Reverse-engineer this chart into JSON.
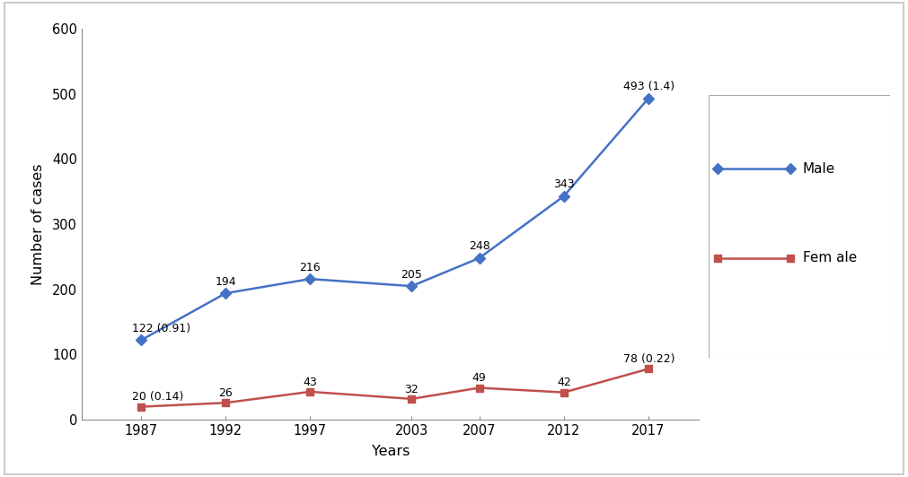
{
  "years": [
    1987,
    1992,
    1997,
    2003,
    2007,
    2012,
    2017
  ],
  "male_values": [
    122,
    194,
    216,
    205,
    248,
    343,
    493
  ],
  "female_values": [
    20,
    26,
    43,
    32,
    49,
    42,
    78
  ],
  "male_labels": [
    "122 (0.91)",
    "194",
    "216",
    "205",
    "248",
    "343",
    "493 (1.4)"
  ],
  "female_labels": [
    "20 (0.14)",
    "26",
    "43",
    "32",
    "49",
    "42",
    "78 (0.22)"
  ],
  "male_color": "#4472C4",
  "female_color": "#C0504D",
  "male_label": "Male",
  "female_label": "Fem ale",
  "xlabel": "Years",
  "ylabel": "Number of cases",
  "ylim": [
    0,
    600
  ],
  "yticks": [
    0,
    100,
    200,
    300,
    400,
    500,
    600
  ],
  "background_color": "#ffffff",
  "border_color": "#aaaaaa",
  "outer_border_color": "#cccccc"
}
